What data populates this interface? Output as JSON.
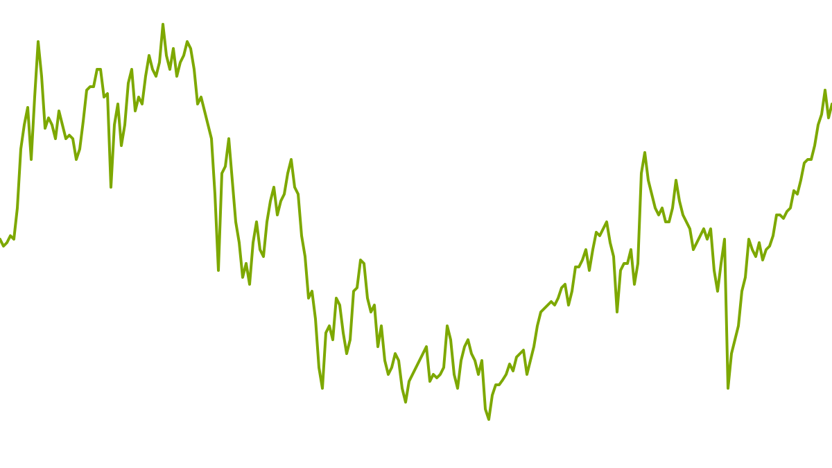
{
  "chart_data": {
    "type": "line",
    "title": "",
    "xlabel": "",
    "ylabel": "",
    "grid": false,
    "axes_visible": false,
    "legend": "none",
    "ylim": [
      0,
      675
    ],
    "series": [
      {
        "color": "#7da800",
        "values": [
          330,
          320,
          325,
          335,
          330,
          375,
          460,
          495,
          520,
          445,
          535,
          615,
          565,
          490,
          505,
          495,
          475,
          515,
          495,
          475,
          480,
          475,
          445,
          460,
          500,
          545,
          550,
          550,
          575,
          575,
          535,
          540,
          405,
          495,
          525,
          465,
          495,
          555,
          575,
          515,
          535,
          525,
          565,
          595,
          575,
          565,
          585,
          640,
          595,
          575,
          605,
          565,
          585,
          595,
          615,
          605,
          575,
          525,
          535,
          515,
          495,
          475,
          395,
          285,
          425,
          435,
          475,
          415,
          355,
          325,
          275,
          295,
          265,
          325,
          355,
          315,
          305,
          355,
          385,
          405,
          365,
          385,
          395,
          425,
          445,
          405,
          395,
          335,
          305,
          245,
          255,
          215,
          145,
          115,
          195,
          205,
          185,
          245,
          235,
          195,
          165,
          185,
          255,
          260,
          300,
          295,
          245,
          225,
          235,
          175,
          205,
          155,
          135,
          145,
          165,
          155,
          115,
          95,
          125,
          135,
          145,
          155,
          165,
          175,
          125,
          135,
          130,
          135,
          145,
          205,
          185,
          135,
          115,
          155,
          175,
          185,
          165,
          155,
          135,
          155,
          85,
          70,
          105,
          120,
          120,
          127,
          135,
          150,
          140,
          160,
          165,
          170,
          135,
          155,
          175,
          205,
          225,
          230,
          235,
          240,
          235,
          245,
          260,
          265,
          235,
          255,
          290,
          290,
          300,
          315,
          285,
          315,
          340,
          335,
          345,
          355,
          325,
          305,
          225,
          285,
          295,
          295,
          315,
          265,
          295,
          425,
          455,
          415,
          395,
          375,
          365,
          375,
          355,
          355,
          375,
          415,
          385,
          365,
          355,
          345,
          315,
          325,
          335,
          345,
          330,
          345,
          285,
          255,
          295,
          330,
          115,
          165,
          185,
          205,
          255,
          275,
          330,
          315,
          305,
          325,
          300,
          315,
          320,
          335,
          365,
          365,
          360,
          370,
          375,
          400,
          395,
          415,
          440,
          445,
          445,
          465,
          495,
          510,
          545,
          505,
          525
        ]
      }
    ]
  }
}
